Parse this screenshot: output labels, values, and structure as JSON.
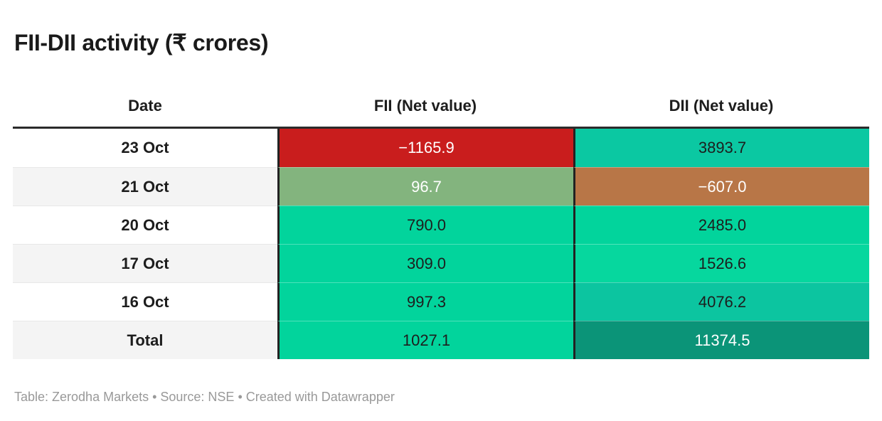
{
  "title": "FII-DII activity (₹ crores)",
  "footer": "Table: Zerodha Markets • Source: NSE • Created with Datawrapper",
  "table": {
    "columns": {
      "date": "Date",
      "fii": "FII (Net value)",
      "dii": "DII (Net value)"
    },
    "rows": [
      {
        "date": "23 Oct",
        "fii": {
          "value": "−1165.9",
          "bg": "#c91d1d",
          "color": "#ffffff"
        },
        "dii": {
          "value": "3893.7",
          "bg": "#0bc8a2",
          "color": "#1d1d1d"
        }
      },
      {
        "date": "21 Oct",
        "fii": {
          "value": "96.7",
          "bg": "#83b47e",
          "color": "#ffffff"
        },
        "dii": {
          "value": "−607.0",
          "bg": "#b87647",
          "color": "#ffffff"
        }
      },
      {
        "date": "20 Oct",
        "fii": {
          "value": "790.0",
          "bg": "#02d49c",
          "color": "#1d1d1d"
        },
        "dii": {
          "value": "2485.0",
          "bg": "#02d49c",
          "color": "#1d1d1d"
        }
      },
      {
        "date": "17 Oct",
        "fii": {
          "value": "309.0",
          "bg": "#02d49c",
          "color": "#1d1d1d"
        },
        "dii": {
          "value": "1526.6",
          "bg": "#06d79e",
          "color": "#1d1d1d"
        }
      },
      {
        "date": "16 Oct",
        "fii": {
          "value": "997.3",
          "bg": "#02d49c",
          "color": "#1d1d1d"
        },
        "dii": {
          "value": "4076.2",
          "bg": "#0cc5a0",
          "color": "#1d1d1d"
        }
      },
      {
        "date": "Total",
        "fii": {
          "value": "1027.1",
          "bg": "#02d49c",
          "color": "#1d1d1d"
        },
        "dii": {
          "value": "11374.5",
          "bg": "#0b9478",
          "color": "#ffffff"
        }
      }
    ]
  },
  "chart_data": {
    "type": "table",
    "title": "FII-DII activity (₹ crores)",
    "categories": [
      "23 Oct",
      "21 Oct",
      "20 Oct",
      "17 Oct",
      "16 Oct",
      "Total"
    ],
    "series": [
      {
        "name": "FII (Net value)",
        "values": [
          -1165.9,
          96.7,
          790.0,
          309.0,
          997.3,
          1027.1
        ]
      },
      {
        "name": "DII (Net value)",
        "values": [
          3893.7,
          -607.0,
          2485.0,
          1526.6,
          4076.2,
          11374.5
        ]
      }
    ],
    "layout": {
      "cell_shading": "heatmap by value; negatives red/brown, positives green, totals darker",
      "footer": "Table: Zerodha Markets • Source: NSE • Created with Datawrapper"
    }
  }
}
